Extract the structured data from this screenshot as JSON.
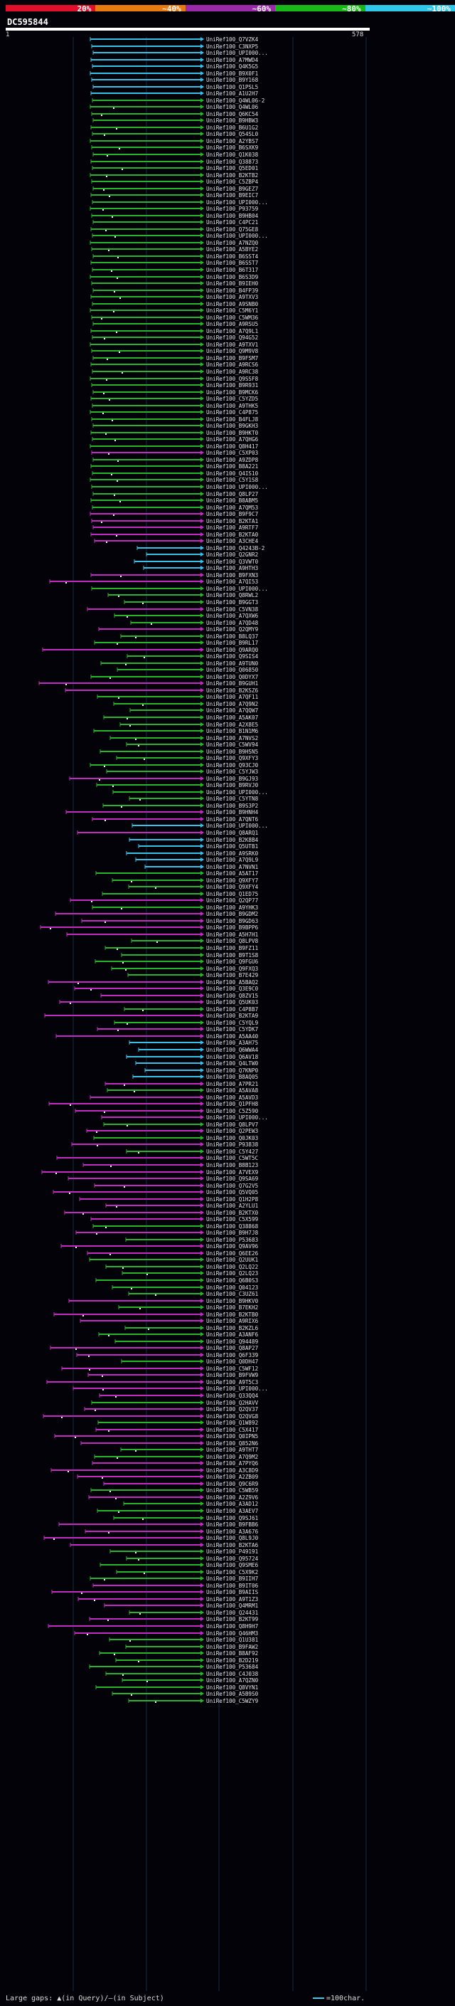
{
  "legend": {
    "segments": [
      {
        "label": "20%",
        "color": "#e0102c"
      },
      {
        "label": "~40%",
        "color": "#e87a10"
      },
      {
        "label": "~60%",
        "color": "#9a2aaa"
      },
      {
        "label": "~80%",
        "color": "#18b818"
      },
      {
        "label": "~100%",
        "color": "#30c8e8"
      }
    ]
  },
  "query": {
    "id": "DC595844",
    "start": "1",
    "end": "578"
  },
  "colors": {
    "cyan": "#36c2e6",
    "green": "#28b428",
    "magenta": "#c22ac2",
    "white": "#ffffff",
    "gridline": "#1a2a44"
  },
  "hits": [
    {
      "label": "UniRef100_Q7VZK4",
      "color": "cyan"
    },
    {
      "label": "UniRef100_C3NXP5",
      "color": "cyan"
    },
    {
      "label": "UniRef100_UPI000...",
      "color": "cyan"
    },
    {
      "label": "UniRef100_A7MWD4",
      "color": "cyan"
    },
    {
      "label": "UniRef100_Q4K5G5",
      "color": "cyan"
    },
    {
      "label": "UniRef100_B9X0F1",
      "color": "cyan"
    },
    {
      "label": "UniRef100_B9Y168",
      "color": "cyan"
    },
    {
      "label": "UniRef100_Q1PSL5",
      "color": "cyan"
    },
    {
      "label": "UniRef100_A1U2H7",
      "color": "cyan"
    },
    {
      "label": "UniRef100_Q4WL06-2",
      "color": "green"
    },
    {
      "label": "UniRef100_Q4WL06",
      "color": "green"
    },
    {
      "label": "UniRef100_Q6KC54",
      "color": "green"
    },
    {
      "label": "UniRef100_B9HBW3",
      "color": "green"
    },
    {
      "label": "UniRef100_B6U1G2",
      "color": "green"
    },
    {
      "label": "UniRef100_Q54SL0",
      "color": "green"
    },
    {
      "label": "UniRef100_A2YBS7",
      "color": "green"
    },
    {
      "label": "UniRef100_B6SXK9",
      "color": "green"
    },
    {
      "label": "UniRef100_Q1K038",
      "color": "green"
    },
    {
      "label": "UniRef100_Q38873",
      "color": "green"
    },
    {
      "label": "UniRef100_Q5ED01",
      "color": "green"
    },
    {
      "label": "UniRef100_B2KTB2",
      "color": "green"
    },
    {
      "label": "UniRef100_C5ZBP4",
      "color": "green"
    },
    {
      "label": "UniRef100_B9GEZ7",
      "color": "green"
    },
    {
      "label": "UniRef100_B9EIC7",
      "color": "green"
    },
    {
      "label": "UniRef100_UPI000...",
      "color": "green"
    },
    {
      "label": "UniRef100_P93759",
      "color": "green"
    },
    {
      "label": "UniRef100_B9HB04",
      "color": "green"
    },
    {
      "label": "UniRef100_C4PC21",
      "color": "green"
    },
    {
      "label": "UniRef100_Q75GE8",
      "color": "green"
    },
    {
      "label": "UniRef100_UPI000...",
      "color": "green"
    },
    {
      "label": "UniRef100_A7NZQ0",
      "color": "green"
    },
    {
      "label": "UniRef100_A5BYE2",
      "color": "green"
    },
    {
      "label": "UniRef100_B6SST4",
      "color": "green"
    },
    {
      "label": "UniRef100_B6SST7",
      "color": "green"
    },
    {
      "label": "UniRef100_B6T317",
      "color": "green"
    },
    {
      "label": "UniRef100_B6S3D9",
      "color": "green"
    },
    {
      "label": "UniRef100_B9IEH0",
      "color": "green"
    },
    {
      "label": "UniRef100_B4FP39",
      "color": "green"
    },
    {
      "label": "UniRef100_A9TXV3",
      "color": "green"
    },
    {
      "label": "UniRef100_A9SNB0",
      "color": "green"
    },
    {
      "label": "UniRef100_C5M6Y1",
      "color": "green"
    },
    {
      "label": "UniRef100_C5WM36",
      "color": "green"
    },
    {
      "label": "UniRef100_A9RSU5",
      "color": "green"
    },
    {
      "label": "UniRef100_A7Q9L1",
      "color": "green"
    },
    {
      "label": "UniRef100_Q94G52",
      "color": "green"
    },
    {
      "label": "UniRef100_A9TXV1",
      "color": "green"
    },
    {
      "label": "UniRef100_Q9M9V8",
      "color": "green"
    },
    {
      "label": "UniRef100_B9FSM7",
      "color": "green"
    },
    {
      "label": "UniRef100_A9RCS6",
      "color": "green"
    },
    {
      "label": "UniRef100_A9RC38",
      "color": "green"
    },
    {
      "label": "UniRef100_Q9SSF8",
      "color": "green"
    },
    {
      "label": "UniRef100_B9R931",
      "color": "green"
    },
    {
      "label": "UniRef100_B9MCK6",
      "color": "green"
    },
    {
      "label": "UniRef100_C5YZD5",
      "color": "green"
    },
    {
      "label": "UniRef100_A9THK5",
      "color": "green"
    },
    {
      "label": "UniRef100_C4P875",
      "color": "green"
    },
    {
      "label": "UniRef100_B4FLJ8",
      "color": "green"
    },
    {
      "label": "UniRef100_B9GKH3",
      "color": "green"
    },
    {
      "label": "UniRef100_B9HKT0",
      "color": "green"
    },
    {
      "label": "UniRef100_A7QHG6",
      "color": "green"
    },
    {
      "label": "UniRef100_Q8H417",
      "color": "green"
    },
    {
      "label": "UniRef100_C5XP03",
      "color": "magenta"
    },
    {
      "label": "UniRef100_A9ZDP8",
      "color": "green"
    },
    {
      "label": "UniRef100_B8A221",
      "color": "green"
    },
    {
      "label": "UniRef100_Q4IS10",
      "color": "green"
    },
    {
      "label": "UniRef100_C5Y1S8",
      "color": "green"
    },
    {
      "label": "UniRef100_UPI000...",
      "color": "green"
    },
    {
      "label": "UniRef100_Q8LP27",
      "color": "green"
    },
    {
      "label": "UniRef100_B8ABM5",
      "color": "green"
    },
    {
      "label": "UniRef100_A7QM53",
      "color": "green"
    },
    {
      "label": "UniRef100_B9F9C7",
      "color": "magenta"
    },
    {
      "label": "UniRef100_B2KTA1",
      "color": "magenta"
    },
    {
      "label": "UniRef100_A9RTF7",
      "color": "magenta"
    },
    {
      "label": "UniRef100_B2KTA0",
      "color": "magenta"
    },
    {
      "label": "UniRef100_A3CHE4",
      "color": "magenta"
    },
    {
      "label": "UniRef100_Q4243B-2",
      "color": "cyan"
    },
    {
      "label": "UniRef100_Q2GNR2",
      "color": "cyan"
    },
    {
      "label": "UniRef100_Q3VWT0",
      "color": "cyan"
    },
    {
      "label": "UniRef100_A9HTH3",
      "color": "cyan"
    },
    {
      "label": "UniRef100_B9FXN3",
      "color": "magenta"
    },
    {
      "label": "UniRef100_A7QI53",
      "color": "magenta"
    },
    {
      "label": "UniRef100_UPI000...",
      "color": "green"
    },
    {
      "label": "UniRef100_Q8RWL2",
      "color": "green"
    },
    {
      "label": "UniRef100_B9GGT3",
      "color": "green"
    },
    {
      "label": "UniRef100_C5VN38",
      "color": "magenta"
    },
    {
      "label": "UniRef100_A7QXW6",
      "color": "green"
    },
    {
      "label": "UniRef100_A7QD48",
      "color": "green"
    },
    {
      "label": "UniRef100_Q2QMY9",
      "color": "magenta"
    },
    {
      "label": "UniRef100_B8LQ37",
      "color": "green"
    },
    {
      "label": "UniRef100_B9RL17",
      "color": "green"
    },
    {
      "label": "UniRef100_Q9ARQ0",
      "color": "magenta"
    },
    {
      "label": "UniRef100_Q9SIS4",
      "color": "green"
    },
    {
      "label": "UniRef100_A9TUN0",
      "color": "green"
    },
    {
      "label": "UniRef100_Q06850",
      "color": "green"
    },
    {
      "label": "UniRef100_Q0DYX7",
      "color": "green"
    },
    {
      "label": "UniRef100_B9GUH1",
      "color": "magenta"
    },
    {
      "label": "UniRef100_B2KSZ6",
      "color": "magenta"
    },
    {
      "label": "UniRef100_A7QF11",
      "color": "green"
    },
    {
      "label": "UniRef100_A7Q9N2",
      "color": "green"
    },
    {
      "label": "UniRef100_A7QQW7",
      "color": "green"
    },
    {
      "label": "UniRef100_A5AK07",
      "color": "green"
    },
    {
      "label": "UniRef100_A2X8E5",
      "color": "green"
    },
    {
      "label": "UniRef100_B1N1M6",
      "color": "green"
    },
    {
      "label": "UniRef100_A7NVS2",
      "color": "green"
    },
    {
      "label": "UniRef100_C5WV94",
      "color": "green"
    },
    {
      "label": "UniRef100_B9HSN5",
      "color": "green"
    },
    {
      "label": "UniRef100_Q9XFY3",
      "color": "green"
    },
    {
      "label": "UniRef100_Q93CJ0",
      "color": "green"
    },
    {
      "label": "UniRef100_C5YJW3",
      "color": "green"
    },
    {
      "label": "UniRef100_B9GJ93",
      "color": "magenta"
    },
    {
      "label": "UniRef100_B9RVJ0",
      "color": "green"
    },
    {
      "label": "UniRef100_UPI000...",
      "color": "green"
    },
    {
      "label": "UniRef100_C5YTN8",
      "color": "green"
    },
    {
      "label": "UniRef100_B9S3P2",
      "color": "green"
    },
    {
      "label": "UniRef100_B9HNH4",
      "color": "magenta"
    },
    {
      "label": "UniRef100_A7QNT6",
      "color": "magenta"
    },
    {
      "label": "UniRef100_UPI000...",
      "color": "cyan"
    },
    {
      "label": "UniRef100_Q8ARQ1",
      "color": "magenta"
    },
    {
      "label": "UniRef100_B2K8B4",
      "color": "cyan"
    },
    {
      "label": "UniRef100_Q5UTB1",
      "color": "cyan"
    },
    {
      "label": "UniRef100_A9SRK0",
      "color": "cyan"
    },
    {
      "label": "UniRef100_A7Q9L9",
      "color": "cyan"
    },
    {
      "label": "UniRef100_A7NVN1",
      "color": "cyan"
    },
    {
      "label": "UniRef100_A5AT17",
      "color": "green"
    },
    {
      "label": "UniRef100_Q9XFY7",
      "color": "green"
    },
    {
      "label": "UniRef100_Q9XFY4",
      "color": "green"
    },
    {
      "label": "UniRef100_Q1ED75",
      "color": "green"
    },
    {
      "label": "UniRef100_Q2QP77",
      "color": "magenta"
    },
    {
      "label": "UniRef100_A9YHK3",
      "color": "green"
    },
    {
      "label": "UniRef100_B9GDM2",
      "color": "magenta"
    },
    {
      "label": "UniRef100_B9GD63",
      "color": "magenta"
    },
    {
      "label": "UniRef100_B9BPP6",
      "color": "magenta"
    },
    {
      "label": "UniRef100_A5H7H1",
      "color": "magenta"
    },
    {
      "label": "UniRef100_Q8LPV8",
      "color": "green"
    },
    {
      "label": "UniRef100_B9FZ11",
      "color": "green"
    },
    {
      "label": "UniRef100_B9T1S8",
      "color": "green"
    },
    {
      "label": "UniRef100_Q9FGU6",
      "color": "green"
    },
    {
      "label": "UniRef100_Q9FXQ3",
      "color": "green"
    },
    {
      "label": "UniRef100_B7E429",
      "color": "green"
    },
    {
      "label": "UniRef100_A5BAQ2",
      "color": "magenta"
    },
    {
      "label": "UniRef100_Q3E9C0",
      "color": "magenta"
    },
    {
      "label": "UniRef100_Q8ZV15",
      "color": "magenta"
    },
    {
      "label": "UniRef100_Q5UK03",
      "color": "magenta"
    },
    {
      "label": "UniRef100_C4P8B7",
      "color": "green"
    },
    {
      "label": "UniRef100_B2KTA9",
      "color": "magenta"
    },
    {
      "label": "UniRef100_C5YQL9",
      "color": "green"
    },
    {
      "label": "UniRef100_C5YDK7",
      "color": "magenta"
    },
    {
      "label": "UniRef100_A5AA40",
      "color": "magenta"
    },
    {
      "label": "UniRef100_A3AH75",
      "color": "cyan"
    },
    {
      "label": "UniRef100_Q6WWA4",
      "color": "cyan"
    },
    {
      "label": "UniRef100_Q6AV18",
      "color": "cyan"
    },
    {
      "label": "UniRef100_Q4LTW0",
      "color": "cyan"
    },
    {
      "label": "UniRef100_Q7KNP0",
      "color": "cyan"
    },
    {
      "label": "UniRef100_B8AQ05",
      "color": "cyan"
    },
    {
      "label": "UniRef100_A7PR21",
      "color": "magenta"
    },
    {
      "label": "UniRef100_A5AVA8",
      "color": "green"
    },
    {
      "label": "UniRef100_A5AVD3",
      "color": "magenta"
    },
    {
      "label": "UniRef100_Q1PFH8",
      "color": "magenta"
    },
    {
      "label": "UniRef100_C5Z590",
      "color": "magenta"
    },
    {
      "label": "UniRef100_UPI000...",
      "color": "magenta"
    },
    {
      "label": "UniRef100_Q8LPV7",
      "color": "green"
    },
    {
      "label": "UniRef100_Q2PEW3",
      "color": "magenta"
    },
    {
      "label": "UniRef100_Q0JK03",
      "color": "green"
    },
    {
      "label": "UniRef100_P93838",
      "color": "magenta"
    },
    {
      "label": "UniRef100_C5Y427",
      "color": "green"
    },
    {
      "label": "UniRef100_C5WT5C",
      "color": "magenta"
    },
    {
      "label": "UniRef100_B8B123",
      "color": "magenta"
    },
    {
      "label": "UniRef100_A7VEX9",
      "color": "magenta"
    },
    {
      "label": "UniRef100_Q9SA69",
      "color": "magenta"
    },
    {
      "label": "UniRef100_Q7G2V5",
      "color": "magenta"
    },
    {
      "label": "UniRef100_Q5VQ05",
      "color": "magenta"
    },
    {
      "label": "UniRef100_Q1H2P8",
      "color": "magenta"
    },
    {
      "label": "UniRef100_A2YLU1",
      "color": "magenta"
    },
    {
      "label": "UniRef100_B2KTX0",
      "color": "magenta"
    },
    {
      "label": "UniRef100_C5X599",
      "color": "magenta"
    },
    {
      "label": "UniRef100_Q38868",
      "color": "green"
    },
    {
      "label": "UniRef100_B9H7J8",
      "color": "magenta"
    },
    {
      "label": "UniRef100_P53683",
      "color": "green"
    },
    {
      "label": "UniRef100_Q9AV96",
      "color": "magenta"
    },
    {
      "label": "UniRef100_Q6EE26",
      "color": "magenta"
    },
    {
      "label": "UniRef100_Q2UUK1",
      "color": "green"
    },
    {
      "label": "UniRef100_Q2LQ22",
      "color": "green"
    },
    {
      "label": "UniRef100_Q2LQ23",
      "color": "green"
    },
    {
      "label": "UniRef100_Q6B0S3",
      "color": "green"
    },
    {
      "label": "UniRef100_Q04123",
      "color": "green"
    },
    {
      "label": "UniRef100_C3UZ61",
      "color": "green"
    },
    {
      "label": "UniRef100_B9HKV0",
      "color": "magenta"
    },
    {
      "label": "UniRef100_B7EKH2",
      "color": "green"
    },
    {
      "label": "UniRef100_B2KTB0",
      "color": "magenta"
    },
    {
      "label": "UniRef100_A9RIX6",
      "color": "magenta"
    },
    {
      "label": "UniRef100_B2KZL6",
      "color": "green"
    },
    {
      "label": "UniRef100_A3ANF6",
      "color": "green"
    },
    {
      "label": "UniRef100_Q94489",
      "color": "green"
    },
    {
      "label": "UniRef100_Q8AP27",
      "color": "magenta"
    },
    {
      "label": "UniRef100_Q6F339",
      "color": "magenta"
    },
    {
      "label": "UniRef100_Q0DH47",
      "color": "green"
    },
    {
      "label": "UniRef100_C5WF12",
      "color": "magenta"
    },
    {
      "label": "UniRef100_B9FVW9",
      "color": "magenta"
    },
    {
      "label": "UniRef100_A9T5C3",
      "color": "magenta"
    },
    {
      "label": "UniRef100_UPI000...",
      "color": "magenta"
    },
    {
      "label": "UniRef100_Q33QQ4",
      "color": "magenta"
    },
    {
      "label": "UniRef100_Q2HAVV",
      "color": "green"
    },
    {
      "label": "UniRef100_Q2QV37",
      "color": "magenta"
    },
    {
      "label": "UniRef100_Q2QVG8",
      "color": "magenta"
    },
    {
      "label": "UniRef100_Q1W892",
      "color": "green"
    },
    {
      "label": "UniRef100_C5X417",
      "color": "magenta"
    },
    {
      "label": "UniRef100_Q0IPN5",
      "color": "magenta"
    },
    {
      "label": "UniRef100_Q852N6",
      "color": "magenta"
    },
    {
      "label": "UniRef100_A9THT7",
      "color": "green"
    },
    {
      "label": "UniRef100_A7Q9M2",
      "color": "green"
    },
    {
      "label": "UniRef100_A7PYQ6",
      "color": "magenta"
    },
    {
      "label": "UniRef100_A3C8D9",
      "color": "magenta"
    },
    {
      "label": "UniRef100_A2ZB09",
      "color": "magenta"
    },
    {
      "label": "UniRef100_Q9C6R9",
      "color": "magenta"
    },
    {
      "label": "UniRef100_C5WB59",
      "color": "green"
    },
    {
      "label": "UniRef100_A2Z9V6",
      "color": "magenta"
    },
    {
      "label": "UniRef100_A3AD12",
      "color": "green"
    },
    {
      "label": "UniRef100_A3AEV7",
      "color": "green"
    },
    {
      "label": "UniRef100_Q9SJ61",
      "color": "green"
    },
    {
      "label": "UniRef100_B9FBB6",
      "color": "magenta"
    },
    {
      "label": "UniRef100_A3A676",
      "color": "magenta"
    },
    {
      "label": "UniRef100_Q8L9J0",
      "color": "magenta"
    },
    {
      "label": "UniRef100_B2KTA6",
      "color": "magenta"
    },
    {
      "label": "UniRef100_P49191",
      "color": "green"
    },
    {
      "label": "UniRef100_Q95724",
      "color": "green"
    },
    {
      "label": "UniRef100_Q9SME6",
      "color": "green"
    },
    {
      "label": "UniRef100_C5X9K2",
      "color": "green"
    },
    {
      "label": "UniRef100_B9IIH7",
      "color": "green"
    },
    {
      "label": "UniRef100_B9IT06",
      "color": "magenta"
    },
    {
      "label": "UniRef100_B9AIIS",
      "color": "magenta"
    },
    {
      "label": "UniRef100_A9T1Z3",
      "color": "magenta"
    },
    {
      "label": "UniRef100_Q4MRM1",
      "color": "magenta"
    },
    {
      "label": "UniRef100_Q24431",
      "color": "green"
    },
    {
      "label": "UniRef100_B2KT99",
      "color": "magenta"
    },
    {
      "label": "UniRef100_Q8H9H7",
      "color": "magenta"
    },
    {
      "label": "UniRef100_Q46HM3",
      "color": "magenta"
    },
    {
      "label": "UniRef100_Q1U381",
      "color": "green"
    },
    {
      "label": "UniRef100_B9FAW2",
      "color": "green"
    },
    {
      "label": "UniRef100_B8AF92",
      "color": "green"
    },
    {
      "label": "UniRef100_B2D219",
      "color": "green"
    },
    {
      "label": "UniRef100_P53684",
      "color": "green"
    },
    {
      "label": "UniRef100_C4J038",
      "color": "green"
    },
    {
      "label": "UniRef100_A7QZN0",
      "color": "green"
    },
    {
      "label": "UniRef100_Q8VYN1",
      "color": "green"
    },
    {
      "label": "UniRef100_A5B9S0",
      "color": "green"
    },
    {
      "label": "UniRef100_C5WZY9",
      "color": "green"
    }
  ],
  "footer": {
    "gaps_text": "Large gaps: ▲(in Query)/—(in Subject)",
    "scale_text": "=100char."
  }
}
